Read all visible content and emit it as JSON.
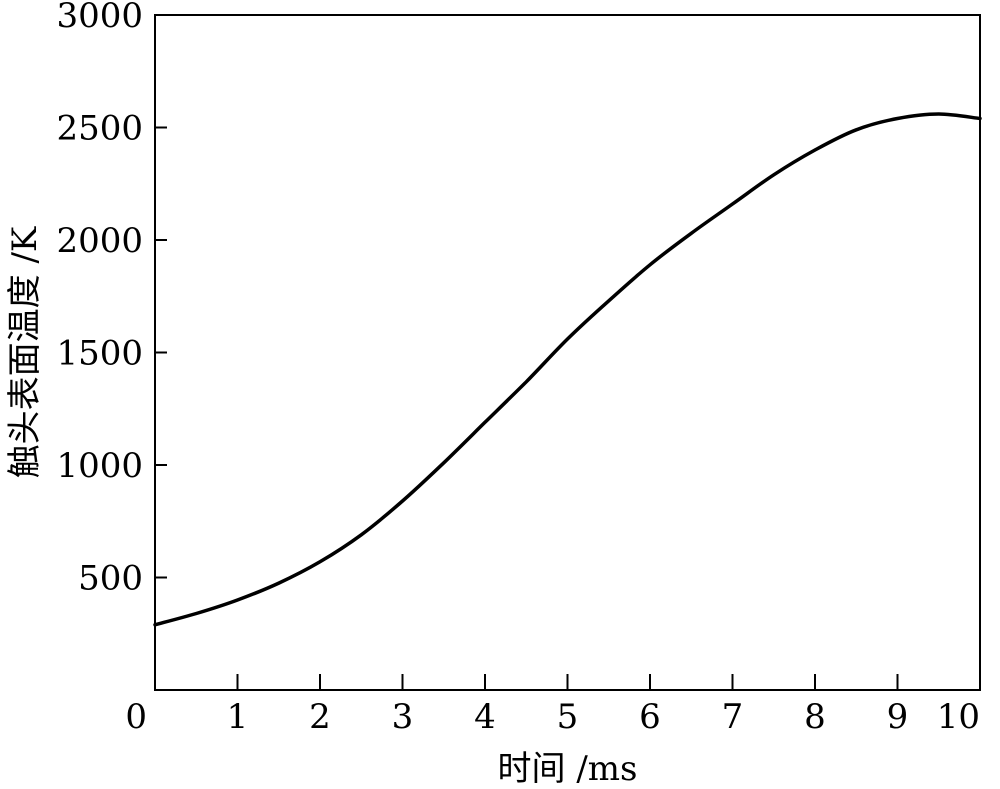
{
  "chart_data": {
    "type": "line",
    "title": "",
    "xlabel": "时间 /ms",
    "ylabel": "触头表面温度 /K",
    "xlim": [
      0,
      10
    ],
    "ylim": [
      0,
      3000
    ],
    "x_ticks": [
      0,
      1,
      2,
      3,
      4,
      5,
      6,
      7,
      8,
      9,
      10
    ],
    "x_tick_labels": [
      "0",
      "1",
      "2",
      "3",
      "4",
      "5",
      "6",
      "7",
      "8",
      "9",
      "10"
    ],
    "y_ticks": [
      500,
      1000,
      1500,
      2000,
      2500,
      3000
    ],
    "y_tick_labels": [
      "500",
      "1000",
      "1500",
      "2000",
      "2500",
      "3000"
    ],
    "grid": false,
    "legend": "none",
    "line_color": "#000000",
    "series": [
      {
        "x": [
          0,
          0.5,
          1,
          1.5,
          2,
          2.5,
          3,
          3.5,
          4,
          4.5,
          5,
          5.5,
          6,
          6.5,
          7,
          7.5,
          8,
          8.5,
          9,
          9.5,
          10
        ],
        "y": [
          290,
          340,
          400,
          475,
          570,
          690,
          840,
          1010,
          1190,
          1370,
          1560,
          1730,
          1890,
          2030,
          2160,
          2290,
          2400,
          2490,
          2540,
          2560,
          2540
        ]
      }
    ]
  }
}
